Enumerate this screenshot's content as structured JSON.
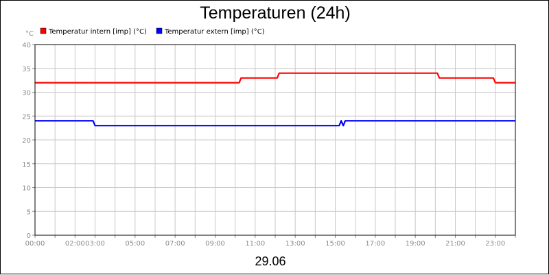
{
  "chart_data": {
    "type": "line",
    "title": "Temperaturen (24h)",
    "ylabel": "°C",
    "xlabel": "29.06",
    "ylim": [
      0,
      40
    ],
    "yticks": [
      0,
      5,
      10,
      15,
      20,
      25,
      30,
      35,
      40
    ],
    "xlim": [
      "00:00",
      "24:00"
    ],
    "xtick_labels": [
      "00:00",
      "02:00",
      "03:00",
      "05:00",
      "07:00",
      "09:00",
      "11:00",
      "13:00",
      "15:00",
      "17:00",
      "19:00",
      "21:00",
      "23:00"
    ],
    "xtick_hours": [
      0,
      2,
      3,
      5,
      7,
      9,
      11,
      13,
      15,
      17,
      19,
      21,
      23
    ],
    "grid": true,
    "legend_position": "top-left",
    "series": [
      {
        "name": "Temperatur intern [imp] (°C)",
        "color": "#ff0000",
        "points": [
          [
            "00:00",
            32
          ],
          [
            "10:12",
            32
          ],
          [
            "10:18",
            33
          ],
          [
            "12:06",
            33
          ],
          [
            "12:12",
            34
          ],
          [
            "20:06",
            34
          ],
          [
            "20:12",
            33
          ],
          [
            "22:54",
            33
          ],
          [
            "23:00",
            32
          ],
          [
            "24:00",
            32
          ]
        ]
      },
      {
        "name": "Temperatur extern [imp] (°C)",
        "color": "#0000ff",
        "points": [
          [
            "00:00",
            24
          ],
          [
            "02:54",
            24
          ],
          [
            "03:00",
            23
          ],
          [
            "15:12",
            23
          ],
          [
            "15:18",
            24
          ],
          [
            "15:24",
            23
          ],
          [
            "15:30",
            24
          ],
          [
            "24:00",
            24
          ]
        ]
      }
    ]
  }
}
